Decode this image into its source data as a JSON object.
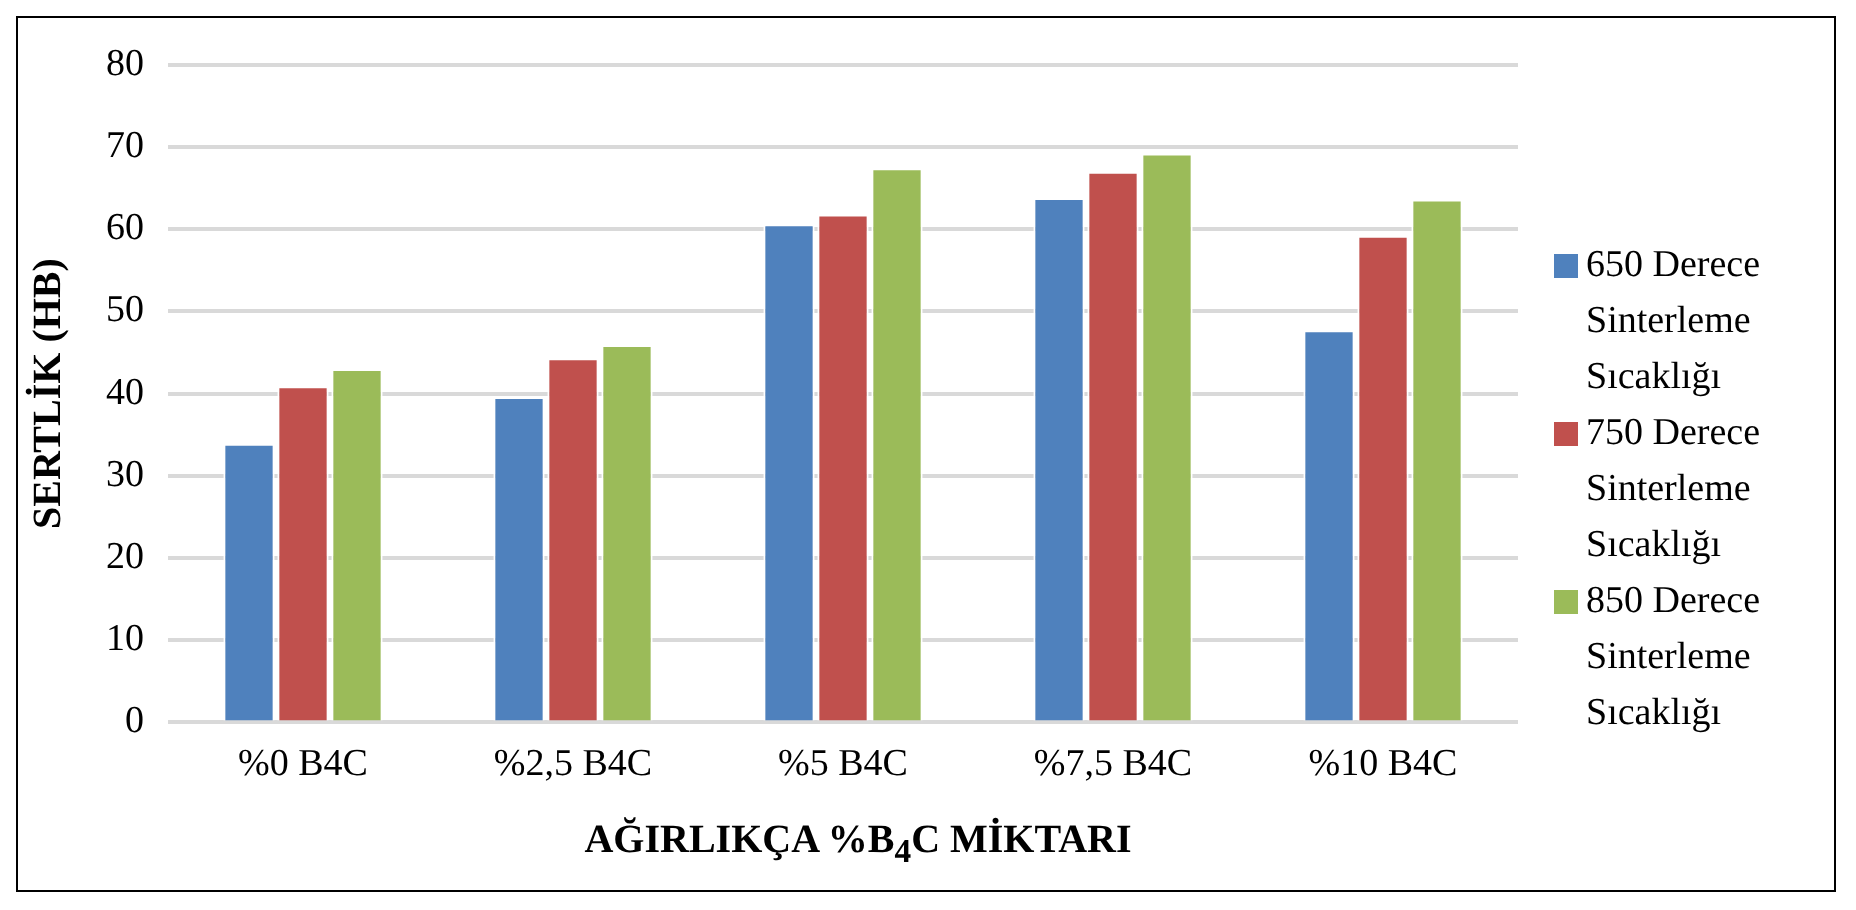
{
  "chart_data": {
    "type": "bar",
    "xlabel": "AĞIRLIKÇA %B$_{4}$C MİKTARI",
    "ylabel": "SERTLİK (HB)",
    "categories": [
      "%0 B4C",
      "%2,5 B4C",
      "%5 B4C",
      "%7,5 B4C",
      "%10 B4C"
    ],
    "series": [
      {
        "name": "650 Derece Sinterleme Sıcaklığı",
        "color": "#4f81bd",
        "values": [
          33.9,
          39.6,
          60.6,
          63.8,
          47.7
        ]
      },
      {
        "name": "750 Derece Sinterleme Sıcaklığı",
        "color": "#c0504d",
        "values": [
          40.9,
          44.3,
          61.8,
          67.0,
          59.2
        ]
      },
      {
        "name": "850 Derece Sinterleme Sıcaklığı",
        "color": "#9bbb59",
        "values": [
          43.0,
          45.9,
          67.4,
          69.2,
          63.6
        ]
      }
    ],
    "ylim": [
      0,
      80
    ],
    "yticks": [
      0,
      10,
      20,
      30,
      40,
      50,
      60,
      70,
      80
    ],
    "grid": "y",
    "legend": "right"
  }
}
